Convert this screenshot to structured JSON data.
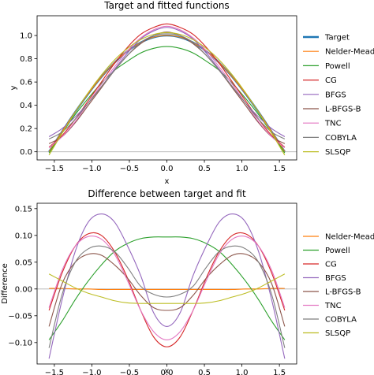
{
  "chart_data": [
    {
      "type": "line",
      "title": "Target and fitted functions",
      "xlabel": "x",
      "ylabel": "y",
      "xlim": [
        -1.73,
        1.73
      ],
      "ylim": [
        -0.07,
        1.17
      ],
      "xticks": [
        -1.5,
        -1.0,
        -0.5,
        0.0,
        0.5,
        1.0,
        1.5
      ],
      "xtick_labels": [
        "−1.5",
        "−1.0",
        "−0.5",
        "0.0",
        "0.5",
        "1.0",
        "1.5"
      ],
      "yticks": [
        0.0,
        0.2,
        0.4,
        0.6,
        0.8,
        1.0
      ],
      "ytick_labels": [
        "0.0",
        "0.2",
        "0.4",
        "0.6",
        "0.8",
        "1.0"
      ],
      "hline": 0,
      "legend": "outside-right",
      "x": [
        -1.5708,
        -1.3963,
        -1.2217,
        -1.0472,
        -0.8727,
        -0.6981,
        -0.5236,
        -0.3491,
        -0.1745,
        0.0,
        0.1745,
        0.3491,
        0.5236,
        0.6981,
        0.8727,
        1.0472,
        1.2217,
        1.3963,
        1.5708
      ],
      "series": [
        {
          "name": "Target",
          "color": "#1f77b4",
          "values": [
            0.0,
            0.174,
            0.342,
            0.5,
            0.643,
            0.766,
            0.866,
            0.94,
            0.985,
            1.0,
            0.985,
            0.94,
            0.866,
            0.766,
            0.643,
            0.5,
            0.342,
            0.174,
            0.0
          ]
        },
        {
          "name": "Nelder-Mead",
          "color": "#ff7f0e",
          "values": [
            0.002,
            0.175,
            0.343,
            0.501,
            0.644,
            0.767,
            0.867,
            0.941,
            0.986,
            1.001,
            0.986,
            0.941,
            0.867,
            0.767,
            0.644,
            0.501,
            0.343,
            0.175,
            0.002
          ]
        },
        {
          "name": "Powell",
          "color": "#2ca02c",
          "values": [
            -0.01,
            0.16,
            0.32,
            0.46,
            0.59,
            0.7,
            0.78,
            0.85,
            0.89,
            0.905,
            0.89,
            0.85,
            0.78,
            0.7,
            0.59,
            0.46,
            0.32,
            0.16,
            -0.01
          ]
        },
        {
          "name": "CG",
          "color": "#d62728",
          "values": [
            0.04,
            0.14,
            0.28,
            0.44,
            0.6,
            0.76,
            0.9,
            1.01,
            1.07,
            1.1,
            1.07,
            1.01,
            0.9,
            0.76,
            0.6,
            0.44,
            0.28,
            0.14,
            0.04
          ]
        },
        {
          "name": "BFGS",
          "color": "#9467bd",
          "values": [
            0.13,
            0.2,
            0.3,
            0.42,
            0.56,
            0.71,
            0.85,
            0.97,
            1.04,
            1.07,
            1.04,
            0.97,
            0.85,
            0.71,
            0.56,
            0.42,
            0.3,
            0.2,
            0.13
          ]
        },
        {
          "name": "L-BFGS-B",
          "color": "#8c564b",
          "values": [
            0.07,
            0.13,
            0.25,
            0.4,
            0.55,
            0.7,
            0.83,
            0.93,
            1.0,
            1.03,
            1.0,
            0.93,
            0.83,
            0.7,
            0.55,
            0.4,
            0.25,
            0.13,
            0.07
          ]
        },
        {
          "name": "TNC",
          "color": "#e377c2",
          "values": [
            0.035,
            0.13,
            0.26,
            0.42,
            0.58,
            0.73,
            0.87,
            0.98,
            1.05,
            1.08,
            1.05,
            0.98,
            0.87,
            0.73,
            0.58,
            0.42,
            0.26,
            0.13,
            0.035
          ]
        },
        {
          "name": "COBYLA",
          "color": "#7f7f7f",
          "values": [
            0.11,
            0.17,
            0.28,
            0.42,
            0.56,
            0.7,
            0.83,
            0.94,
            1.0,
            1.015,
            1.0,
            0.94,
            0.83,
            0.7,
            0.56,
            0.42,
            0.28,
            0.17,
            0.11
          ]
        },
        {
          "name": "SLSQP",
          "color": "#bcbd22",
          "values": [
            -0.028,
            0.16,
            0.34,
            0.51,
            0.66,
            0.79,
            0.89,
            0.965,
            1.01,
            1.025,
            1.01,
            0.965,
            0.89,
            0.79,
            0.66,
            0.51,
            0.34,
            0.16,
            -0.028
          ]
        }
      ]
    },
    {
      "type": "line",
      "title": "Difference between target and fit",
      "xlabel": "x",
      "ylabel": "Difference",
      "xlim": [
        -1.73,
        1.73
      ],
      "ylim": [
        -0.14,
        0.16
      ],
      "xticks": [
        -1.5,
        -1.0,
        -0.5,
        0.0,
        0.5,
        1.0,
        1.5
      ],
      "xtick_labels": [
        "−1.5",
        "−1.0",
        "−0.5",
        "0.0",
        "0.5",
        "1.0",
        "1.5"
      ],
      "yticks": [
        -0.1,
        -0.05,
        0.0,
        0.05,
        0.1,
        0.15
      ],
      "ytick_labels": [
        "−0.10",
        "−0.05",
        "0.00",
        "0.05",
        "0.10",
        "0.15"
      ],
      "hline": 0,
      "legend": "outside-right",
      "x": [
        -1.5708,
        -1.3963,
        -1.2217,
        -1.0472,
        -0.8727,
        -0.6981,
        -0.5236,
        -0.3491,
        -0.1745,
        0.0,
        0.1745,
        0.3491,
        0.5236,
        0.6981,
        0.8727,
        1.0472,
        1.2217,
        1.3963,
        1.5708
      ],
      "series": [
        {
          "name": "Nelder-Mead",
          "color": "#ff7f0e",
          "values": [
            0.001,
            0.001,
            0.0,
            0.0,
            -0.001,
            -0.001,
            -0.001,
            -0.001,
            -0.001,
            -0.001,
            -0.001,
            -0.001,
            -0.001,
            -0.001,
            -0.001,
            0.0,
            0.0,
            0.001,
            0.001
          ]
        },
        {
          "name": "Powell",
          "color": "#2ca02c",
          "values": [
            -0.095,
            -0.06,
            -0.02,
            0.015,
            0.045,
            0.07,
            0.085,
            0.094,
            0.097,
            0.097,
            0.097,
            0.094,
            0.085,
            0.07,
            0.045,
            0.015,
            -0.02,
            -0.06,
            -0.095
          ]
        },
        {
          "name": "CG",
          "color": "#d62728",
          "values": [
            -0.04,
            0.03,
            0.08,
            0.103,
            0.1,
            0.07,
            0.02,
            -0.04,
            -0.09,
            -0.108,
            -0.09,
            -0.04,
            0.02,
            0.07,
            0.1,
            0.103,
            0.08,
            0.03,
            -0.04
          ]
        },
        {
          "name": "BFGS",
          "color": "#9467bd",
          "values": [
            -0.13,
            -0.02,
            0.07,
            0.125,
            0.14,
            0.125,
            0.08,
            0.025,
            -0.045,
            -0.07,
            -0.045,
            0.025,
            0.08,
            0.125,
            0.14,
            0.125,
            0.07,
            -0.02,
            -0.13
          ]
        },
        {
          "name": "L-BFGS-B",
          "color": "#8c564b",
          "values": [
            -0.07,
            0.01,
            0.05,
            0.065,
            0.063,
            0.045,
            0.02,
            -0.012,
            -0.035,
            -0.04,
            -0.035,
            -0.012,
            0.02,
            0.045,
            0.063,
            0.065,
            0.05,
            0.01,
            -0.07
          ]
        },
        {
          "name": "TNC",
          "color": "#e377c2",
          "values": [
            -0.035,
            0.035,
            0.08,
            0.098,
            0.093,
            0.065,
            0.015,
            -0.04,
            -0.08,
            -0.095,
            -0.08,
            -0.04,
            0.015,
            0.065,
            0.093,
            0.098,
            0.08,
            0.035,
            -0.035
          ]
        },
        {
          "name": "COBYLA",
          "color": "#7f7f7f",
          "values": [
            -0.11,
            -0.01,
            0.05,
            0.075,
            0.08,
            0.07,
            0.04,
            0.005,
            -0.01,
            -0.015,
            -0.01,
            0.005,
            0.04,
            0.07,
            0.08,
            0.075,
            0.05,
            -0.01,
            -0.11
          ]
        },
        {
          "name": "SLSQP",
          "color": "#bcbd22",
          "values": [
            0.028,
            0.015,
            0.002,
            -0.008,
            -0.015,
            -0.022,
            -0.026,
            -0.027,
            -0.027,
            -0.027,
            -0.027,
            -0.027,
            -0.026,
            -0.022,
            -0.015,
            -0.008,
            0.002,
            0.015,
            0.028
          ]
        }
      ]
    }
  ]
}
